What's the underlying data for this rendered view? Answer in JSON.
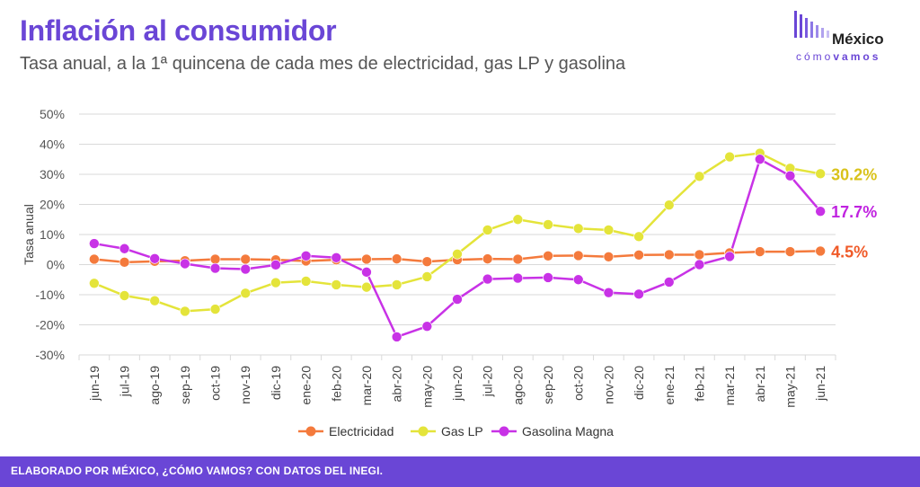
{
  "header": {
    "title": "Inflación al consumidor",
    "subtitle": "Tasa anual, a la 1ª quincena de cada mes de electricidad, gas LP y gasolina"
  },
  "logo": {
    "main": "México",
    "sub_light": "cómo",
    "sub_bold": "vamos"
  },
  "footer": {
    "text": "ELABORADO POR MÉXICO, ¿CÓMO VAMOS? CON DATOS DEL INEGI."
  },
  "colors": {
    "brand": "#6a46d6",
    "electricidad": "#f47a3c",
    "gas_lp": "#e4e43a",
    "gasolina": "#c832e6"
  },
  "chart_data": {
    "type": "line",
    "ylabel": "Tasa anual",
    "ylim": [
      -30,
      50
    ],
    "yticks": [
      50,
      40,
      30,
      20,
      10,
      0,
      -10,
      -20,
      -30
    ],
    "ytick_labels": [
      "50%",
      "40%",
      "30%",
      "20%",
      "10%",
      "0%",
      "-10%",
      "-20%",
      "-30%"
    ],
    "grid": true,
    "legend_position": "bottom",
    "categories": [
      "jun-19",
      "jul-19",
      "ago-19",
      "sep-19",
      "oct-19",
      "nov-19",
      "dic-19",
      "ene-20",
      "feb-20",
      "mar-20",
      "abr-20",
      "may-20",
      "jun-20",
      "jul-20",
      "ago-20",
      "sep-20",
      "oct-20",
      "nov-20",
      "dic-20",
      "ene-21",
      "feb-21",
      "mar-21",
      "abr-21",
      "may-21",
      "jun-21"
    ],
    "series": [
      {
        "name": "Electricidad",
        "color": "#f47a3c",
        "values": [
          1.8,
          0.8,
          1.1,
          1.3,
          1.8,
          1.8,
          1.6,
          1.2,
          1.6,
          1.8,
          1.9,
          1.0,
          1.6,
          1.9,
          1.8,
          2.9,
          3.0,
          2.6,
          3.2,
          3.3,
          3.3,
          3.9,
          4.3,
          4.3,
          4.5
        ],
        "end_label": "4.5%"
      },
      {
        "name": "Gas LP",
        "color": "#e4e43a",
        "values": [
          -6.2,
          -10.3,
          -12.0,
          -15.5,
          -14.8,
          -9.5,
          -6.0,
          -5.5,
          -6.7,
          -7.5,
          -6.7,
          -4.0,
          3.5,
          11.5,
          15.0,
          13.3,
          12.0,
          11.5,
          9.3,
          19.8,
          29.3,
          35.8,
          37.0,
          32.0,
          30.2
        ],
        "end_label": "30.2%"
      },
      {
        "name": "Gasolina Magna",
        "color": "#c832e6",
        "values": [
          7.0,
          5.3,
          2.0,
          0.3,
          -1.2,
          -1.5,
          -0.1,
          2.9,
          2.3,
          -2.5,
          -24.0,
          -20.5,
          -11.5,
          -4.8,
          -4.5,
          -4.3,
          -5.0,
          -9.3,
          -9.8,
          -5.8,
          0.0,
          2.7,
          35.0,
          29.5,
          17.7
        ],
        "end_label": "17.7%"
      }
    ]
  }
}
